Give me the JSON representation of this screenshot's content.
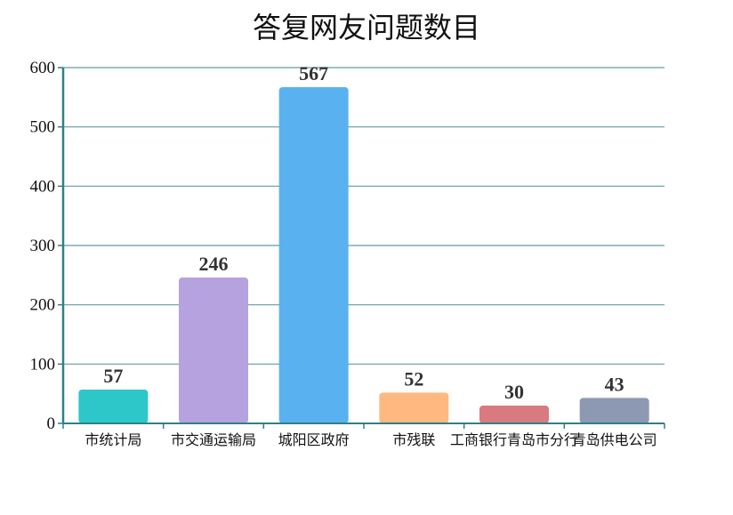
{
  "chart_data": {
    "type": "bar",
    "title": "答复网友问题数目",
    "categories": [
      "市统计局",
      "市交通运输局",
      "城阳区政府",
      "市残联",
      "工商银行青岛市分行",
      "青岛供电公司"
    ],
    "values": [
      57,
      246,
      567,
      52,
      30,
      43
    ],
    "colors": [
      "#2ec7c9",
      "#b6a2de",
      "#5ab1ef",
      "#ffb980",
      "#d87a80",
      "#8d98b3"
    ],
    "ylim": [
      0,
      600
    ],
    "yticks": [
      0,
      100,
      200,
      300,
      400,
      500,
      600
    ],
    "grid": true,
    "legend": "none"
  }
}
